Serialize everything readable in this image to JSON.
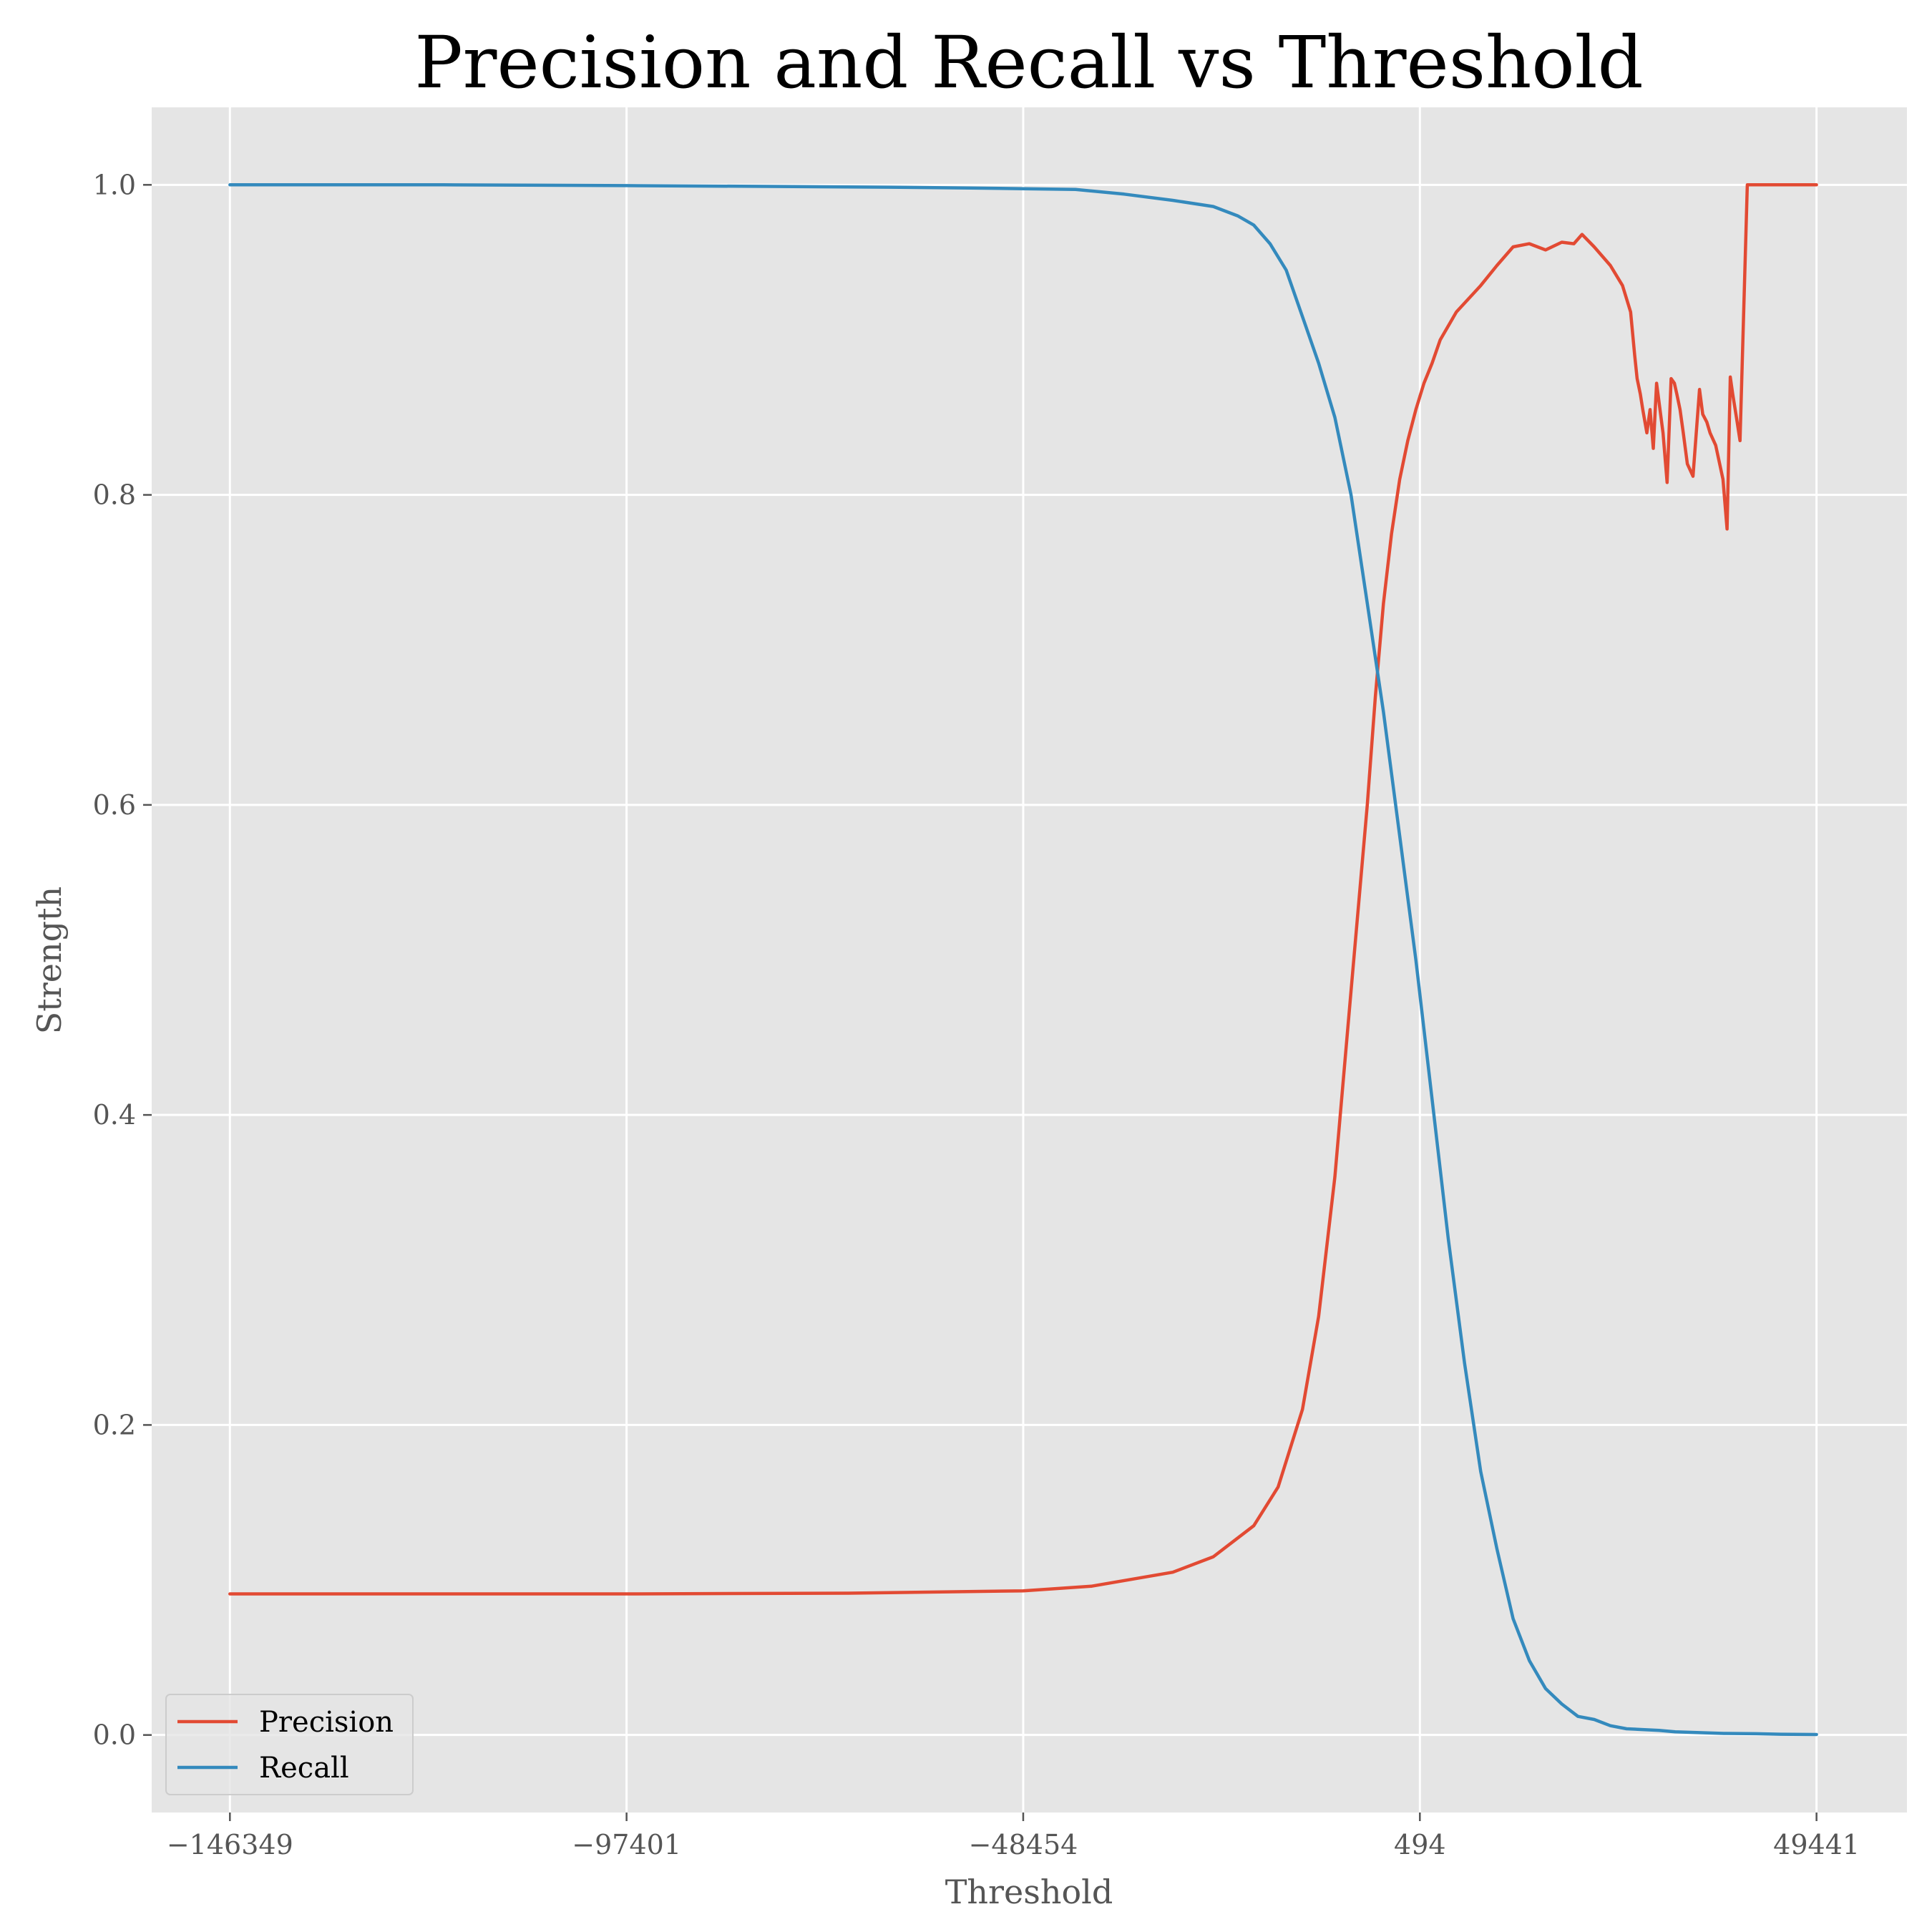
{
  "chart_data": {
    "type": "line",
    "title": "Precision and Recall vs Threshold",
    "xlabel": "Threshold",
    "ylabel": "Strength",
    "xlim": [
      -156000,
      60600
    ],
    "ylim": [
      -0.05,
      1.05
    ],
    "x_ticks": [
      -146349,
      -97401,
      -48454,
      494,
      49441
    ],
    "x_tick_labels": [
      "−146349",
      "−97401",
      "−48454",
      "494",
      "49441"
    ],
    "y_ticks": [
      0.0,
      0.2,
      0.4,
      0.6,
      0.8,
      1.0
    ],
    "y_tick_labels": [
      "0.0",
      "0.2",
      "0.4",
      "0.6",
      "0.8",
      "1.0"
    ],
    "grid": true,
    "legend_position": "lower-left",
    "series": [
      {
        "name": "Precision",
        "color": "#E24A33",
        "x": [
          -146349,
          -120000,
          -97401,
          -70000,
          -48454,
          -40000,
          -30000,
          -25000,
          -20000,
          -17000,
          -14000,
          -12000,
          -10000,
          -8000,
          -6000,
          -5000,
          -4000,
          -3000,
          -2000,
          -1000,
          0,
          1000,
          2000,
          3000,
          5000,
          8000,
          10000,
          12000,
          14000,
          16000,
          18000,
          19500,
          20500,
          22000,
          24000,
          25500,
          26500,
          27000,
          27300,
          27700,
          28000,
          28500,
          28900,
          29300,
          29700,
          30500,
          31000,
          31500,
          31900,
          32200,
          32600,
          33000,
          33500,
          34200,
          35000,
          35400,
          35900,
          36300,
          37000,
          37900,
          38400,
          38800,
          39100,
          39500,
          40000,
          40900,
          41300,
          41700,
          42000,
          42500,
          43000,
          44000,
          49441
        ],
        "values": [
          0.091,
          0.091,
          0.091,
          0.0915,
          0.093,
          0.096,
          0.105,
          0.115,
          0.135,
          0.16,
          0.21,
          0.27,
          0.36,
          0.48,
          0.6,
          0.67,
          0.73,
          0.775,
          0.81,
          0.835,
          0.855,
          0.872,
          0.885,
          0.9,
          0.918,
          0.935,
          0.948,
          0.96,
          0.962,
          0.958,
          0.963,
          0.962,
          0.968,
          0.96,
          0.948,
          0.935,
          0.918,
          0.89,
          0.875,
          0.865,
          0.855,
          0.84,
          0.855,
          0.83,
          0.872,
          0.84,
          0.808,
          0.875,
          0.872,
          0.865,
          0.855,
          0.84,
          0.82,
          0.812,
          0.868,
          0.852,
          0.847,
          0.84,
          0.832,
          0.81,
          0.778,
          0.876,
          0.865,
          0.852,
          0.835,
          1.0,
          1.0,
          1.0,
          1.0,
          1.0,
          1.0,
          1.0,
          1.0
        ]
      },
      {
        "name": "Recall",
        "color": "#348ABD",
        "x": [
          -146349,
          -120000,
          -97401,
          -80000,
          -65000,
          -55000,
          -48454,
          -42000,
          -36000,
          -30000,
          -25000,
          -22000,
          -20000,
          -18000,
          -16000,
          -14000,
          -12000,
          -10000,
          -8000,
          -6000,
          -4000,
          -2000,
          0,
          2000,
          4000,
          6000,
          8000,
          10000,
          12000,
          14000,
          16000,
          18000,
          20000,
          22000,
          24000,
          26000,
          28000,
          30000,
          32000,
          35000,
          38000,
          42000,
          45000,
          49441
        ],
        "values": [
          1.0,
          1.0,
          0.9995,
          0.999,
          0.9985,
          0.998,
          0.9975,
          0.997,
          0.994,
          0.99,
          0.986,
          0.98,
          0.974,
          0.962,
          0.945,
          0.915,
          0.885,
          0.85,
          0.8,
          0.73,
          0.66,
          0.58,
          0.5,
          0.41,
          0.32,
          0.24,
          0.17,
          0.12,
          0.075,
          0.048,
          0.03,
          0.02,
          0.012,
          0.01,
          0.006,
          0.004,
          0.0035,
          0.003,
          0.002,
          0.0015,
          0.001,
          0.0008,
          0.0005,
          0.0003
        ]
      }
    ]
  }
}
